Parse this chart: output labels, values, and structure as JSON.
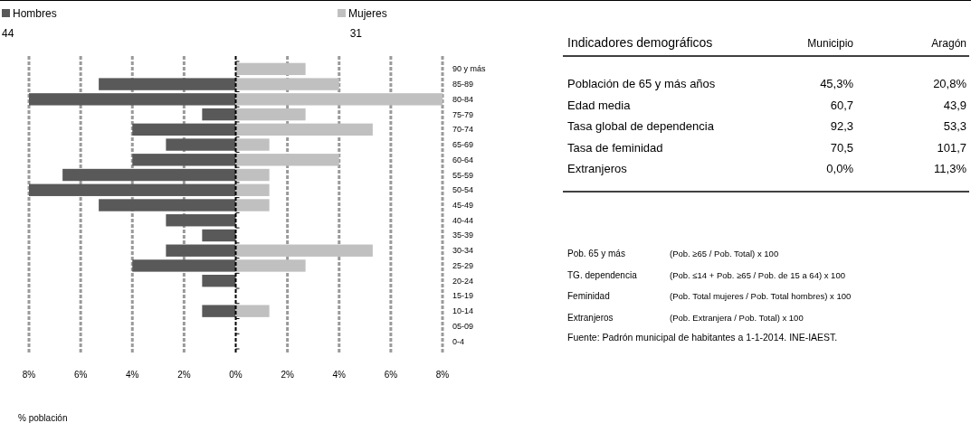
{
  "chart_data": [
    {
      "type": "bar",
      "orientation": "horizontal",
      "stacked": true,
      "legend": "top",
      "xlabel": "% población",
      "ref_lines": [
        {
          "axis": "x",
          "value": 0,
          "color": "#000000",
          "line_style": "dashed"
        }
      ],
      "categories": [
        "90 y más",
        "85-89",
        "80-84",
        "75-79",
        "70-74",
        "65-69",
        "60-64",
        "55-59",
        "50-54",
        "45-49",
        "40-44",
        "35-39",
        "30-34",
        "25-29",
        "20-24",
        "15-19",
        "10-14",
        "05-09",
        "0-4"
      ],
      "series": [
        {
          "name": "Hombres",
          "color": "#595959",
          "values": [
            0,
            -5.3,
            -8,
            -1.3,
            -4,
            -2.7,
            -4,
            -6.7,
            -8,
            -5.3,
            -2.7,
            -1.3,
            -2.7,
            -4,
            -1.3,
            0,
            -1.3,
            0,
            0
          ]
        },
        {
          "name": "Mujeres",
          "color": "#c0c0c0",
          "values": [
            2.7,
            4,
            8,
            2.7,
            5.3,
            1.3,
            4,
            1.3,
            1.3,
            1.3,
            0,
            0,
            5.3,
            2.7,
            0,
            0,
            1.3,
            0,
            0
          ]
        }
      ],
      "xlim": [
        -8,
        8
      ],
      "xticks": [
        {
          "value": -8,
          "label": "8%"
        },
        {
          "value": -6,
          "label": "6%"
        },
        {
          "value": -4,
          "label": "4%"
        },
        {
          "value": -2,
          "label": "2%"
        },
        {
          "value": 0,
          "label": "0%"
        },
        {
          "value": 2,
          "label": "2%"
        },
        {
          "value": 4,
          "label": "4%"
        },
        {
          "value": 6,
          "label": "6%"
        },
        {
          "value": 8,
          "label": "8%"
        }
      ],
      "grid": "x",
      "annotations": [
        "44",
        "31"
      ]
    },
    {
      "type": "other",
      "title": "Indicadores demográficos",
      "categories": [
        "Municipio",
        "Aragón"
      ],
      "y_categories": [
        "Población de 65 y más años",
        "Edad media",
        "Tasa global de dependencia",
        "Tasa de feminidad",
        "Extranjeros"
      ],
      "cell_labels": [
        [
          "45,3%",
          "20,8%"
        ],
        [
          "60,7",
          "43,9"
        ],
        [
          "92,3",
          "53,3"
        ],
        [
          "70,5",
          "101,7"
        ],
        [
          "0,0%",
          "11,3%"
        ]
      ]
    },
    {
      "type": "other",
      "y_categories": [
        "Pob. 65 y más",
        "TG. dependencia",
        "Feminidad",
        "Extranjeros"
      ],
      "cell_labels": [
        [
          "(Pob. ≥65 / Pob. Total) x 100"
        ],
        [
          "(Pob. ≤14 + Pob. ≥65 / Pob. de 15 a 64) x 100"
        ],
        [
          "(Pob. Total mujeres / Pob. Total hombres) x 100"
        ],
        [
          "(Pob. Extranjera / Pob. Total) x 100"
        ]
      ],
      "annotations": [
        "Fuente: Padrón municipal de habitantes a 1-1-2014. INE-IAEST."
      ]
    }
  ]
}
